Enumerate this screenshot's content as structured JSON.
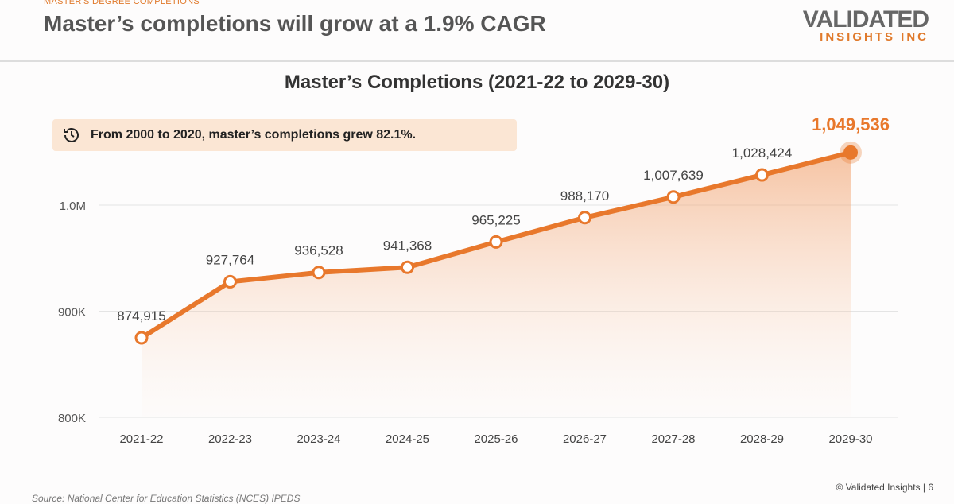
{
  "header": {
    "kicker": "MASTER'S DEGREE COMPLETIONS",
    "title": "Master’s completions will grow at a 1.9% CAGR",
    "logo_top": "VALIDATED",
    "logo_bottom": "INSIGHTS INC"
  },
  "callout": {
    "icon": "clock-history-icon",
    "text": "From 2000 to 2020, master’s completions grew 82.1%."
  },
  "footer": {
    "copyright": "© Validated Insights | 6",
    "source": "Source: National Center for Education Statistics (NCES) IPEDS"
  },
  "chart_data": {
    "type": "area",
    "title": "Master’s Completions (2021-22 to 2029-30)",
    "categories": [
      "2021-22",
      "2022-23",
      "2023-24",
      "2024-25",
      "2025-26",
      "2026-27",
      "2027-28",
      "2028-29",
      "2029-30"
    ],
    "values": [
      874915,
      927764,
      936528,
      941368,
      965225,
      988170,
      1007639,
      1028424,
      1049536
    ],
    "labels": [
      "874,915",
      "927,764",
      "936,528",
      "941,368",
      "965,225",
      "988,170",
      "1,007,639",
      "1,028,424",
      "1,049,536"
    ],
    "yticks": [
      {
        "v": 800000,
        "label": "800K"
      },
      {
        "v": 900000,
        "label": "900K"
      },
      {
        "v": 1000000,
        "label": "1.0M"
      }
    ],
    "ylim": [
      800000,
      1100000
    ],
    "grid": true,
    "color": "#e8782c"
  }
}
